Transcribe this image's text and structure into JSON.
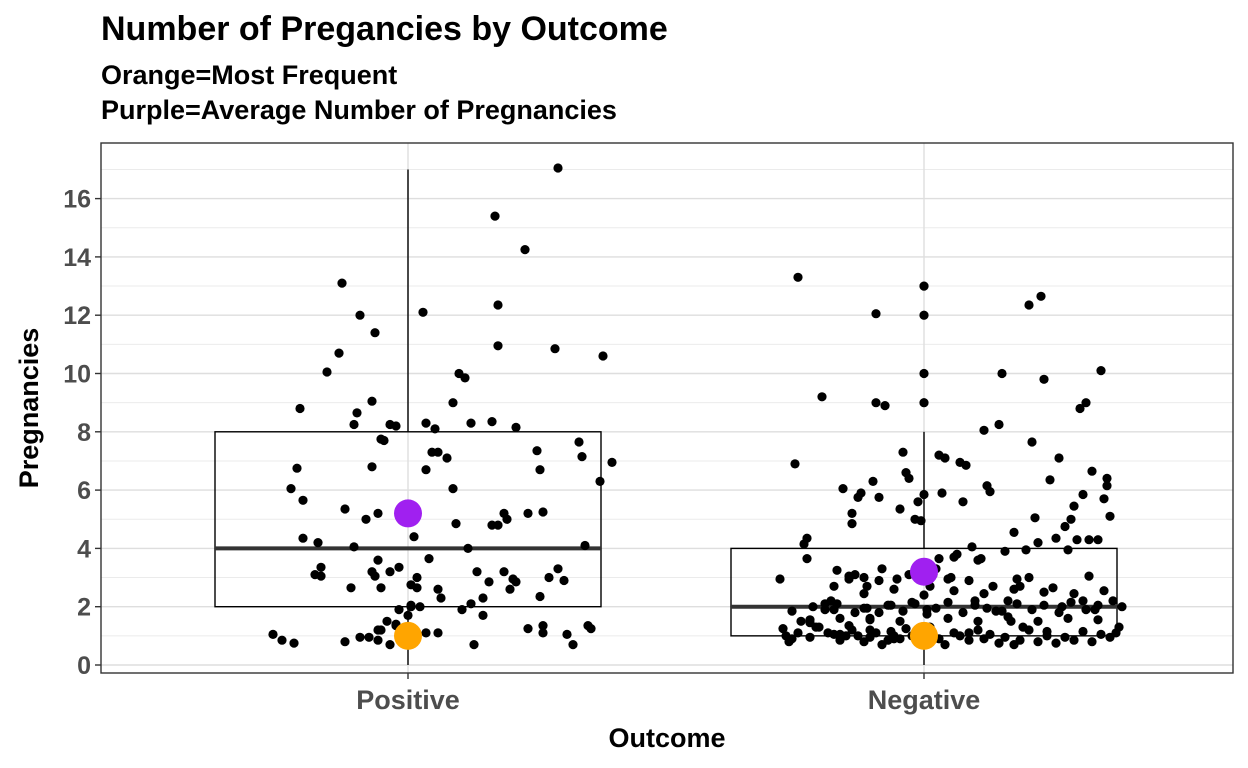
{
  "chart_data": {
    "type": "boxplot-jitter",
    "title": "Number of Pregancies by Outcome",
    "subtitle_lines": [
      "Orange=Most Frequent",
      "Purple=Average Number of Pregnancies"
    ],
    "xlabel": "Outcome",
    "ylabel": "Pregnancies",
    "categories": [
      "Positive",
      "Negative"
    ],
    "ylim": [
      -0.2,
      17.6
    ],
    "yticks": [
      0,
      2,
      4,
      6,
      8,
      10,
      12,
      14,
      16
    ],
    "grid": true,
    "boxes": [
      {
        "category": "Positive",
        "q1": 2,
        "median": 4,
        "q3": 8,
        "whisker_low": 0,
        "whisker_high": 17,
        "outliers": []
      },
      {
        "category": "Negative",
        "q1": 1,
        "median": 2,
        "q3": 4,
        "whisker_low": 0,
        "whisker_high": 8,
        "outliers": [
          9,
          10,
          12,
          13
        ]
      }
    ],
    "summary_points": [
      {
        "category": "Positive",
        "kind": "mode",
        "value": 1,
        "color": "#FFA500"
      },
      {
        "category": "Positive",
        "kind": "mean",
        "value": 5.2,
        "color": "#A020F0"
      },
      {
        "category": "Negative",
        "kind": "mode",
        "value": 1,
        "color": "#FFA500"
      },
      {
        "category": "Negative",
        "kind": "mean",
        "value": 3.2,
        "color": "#A020F0"
      }
    ],
    "jitter_points": {
      "Positive": [
        [
          -0.39,
          6.05
        ],
        [
          -0.36,
          8.8
        ],
        [
          -0.37,
          6.75
        ],
        [
          -0.35,
          4.35
        ],
        [
          -0.35,
          5.65
        ],
        [
          -0.31,
          3.1
        ],
        [
          -0.29,
          3.35
        ],
        [
          -0.29,
          3.05
        ],
        [
          -0.27,
          10.05
        ],
        [
          -0.23,
          10.7
        ],
        [
          -0.22,
          13.1
        ],
        [
          -0.21,
          5.35
        ],
        [
          -0.19,
          2.65
        ],
        [
          -0.18,
          4.05
        ],
        [
          -0.17,
          8.65
        ],
        [
          -0.16,
          12.0
        ],
        [
          -0.14,
          5.0
        ],
        [
          -0.12,
          6.8
        ],
        [
          -0.12,
          3.2
        ],
        [
          -0.11,
          3.05
        ],
        [
          -0.1,
          5.2
        ],
        [
          -0.09,
          2.65
        ],
        [
          -0.18,
          8.25
        ],
        [
          -0.06,
          3.2
        ],
        [
          -0.04,
          8.2
        ],
        [
          -0.04,
          1.35
        ],
        [
          -0.03,
          3.35
        ],
        [
          -0.03,
          1.9
        ],
        [
          0.0,
          1.7
        ],
        [
          0.01,
          2.0
        ],
        [
          0.01,
          2.75
        ],
        [
          0.03,
          3.0
        ],
        [
          0.03,
          2.65
        ],
        [
          0.01,
          2.05
        ],
        [
          0.02,
          4.4
        ],
        [
          -0.09,
          7.75
        ],
        [
          -0.08,
          7.7
        ],
        [
          -0.06,
          8.25
        ],
        [
          -0.07,
          1.5
        ],
        [
          -0.09,
          1.2
        ],
        [
          -0.1,
          1.2
        ],
        [
          -0.1,
          3.6
        ],
        [
          -0.11,
          11.4
        ],
        [
          -0.12,
          9.05
        ],
        [
          0.07,
          3.65
        ],
        [
          0.08,
          7.3
        ],
        [
          0.09,
          8.1
        ],
        [
          0.1,
          7.3
        ],
        [
          0.11,
          2.3
        ],
        [
          0.13,
          7.1
        ],
        [
          0.15,
          9.0
        ],
        [
          0.15,
          6.05
        ],
        [
          0.16,
          4.85
        ],
        [
          0.17,
          10.0
        ],
        [
          0.19,
          9.85
        ],
        [
          0.2,
          4.0
        ],
        [
          0.21,
          8.3
        ],
        [
          0.21,
          2.1
        ],
        [
          0.23,
          3.2
        ],
        [
          0.25,
          2.3
        ],
        [
          0.27,
          2.85
        ],
        [
          0.28,
          4.8
        ],
        [
          0.28,
          8.35
        ],
        [
          0.29,
          15.4
        ],
        [
          0.3,
          10.95
        ],
        [
          0.3,
          12.35
        ],
        [
          0.32,
          5.2
        ],
        [
          0.33,
          5.0
        ],
        [
          0.34,
          2.6
        ],
        [
          0.35,
          2.95
        ],
        [
          0.36,
          2.85
        ],
        [
          0.36,
          8.15
        ],
        [
          0.39,
          14.25
        ],
        [
          0.4,
          5.2
        ],
        [
          0.43,
          7.35
        ],
        [
          0.44,
          2.35
        ],
        [
          0.44,
          6.7
        ],
        [
          0.45,
          5.25
        ],
        [
          0.45,
          1.35
        ],
        [
          0.47,
          3.0
        ],
        [
          0.49,
          10.85
        ],
        [
          0.5,
          3.3
        ],
        [
          0.52,
          2.9
        ],
        [
          0.5,
          17.05
        ],
        [
          0.53,
          1.05
        ],
        [
          0.55,
          0.7
        ],
        [
          0.57,
          7.65
        ],
        [
          0.58,
          7.15
        ],
        [
          0.59,
          4.1
        ],
        [
          0.6,
          1.35
        ],
        [
          0.61,
          1.25
        ],
        [
          0.64,
          6.3
        ],
        [
          0.65,
          10.6
        ],
        [
          0.68,
          6.95
        ],
        [
          0.1,
          1.1
        ],
        [
          0.22,
          0.7
        ],
        [
          0.25,
          1.7
        ],
        [
          0.4,
          1.25
        ],
        [
          0.45,
          1.1
        ],
        [
          -0.45,
          1.05
        ],
        [
          -0.42,
          0.85
        ],
        [
          -0.38,
          0.75
        ],
        [
          -0.21,
          0.8
        ],
        [
          -0.16,
          0.95
        ],
        [
          -0.13,
          0.95
        ],
        [
          -0.1,
          0.85
        ],
        [
          -0.06,
          0.7
        ],
        [
          0.06,
          1.1
        ],
        [
          -0.04,
          1.4
        ],
        [
          0.05,
          12.1
        ],
        [
          0.1,
          2.6
        ],
        [
          0.06,
          6.7
        ],
        [
          0.06,
          8.3
        ],
        [
          0.0,
          1.25
        ],
        [
          0.3,
          4.8
        ],
        [
          0.32,
          3.2
        ],
        [
          0.18,
          1.9
        ],
        [
          -0.3,
          4.2
        ],
        [
          0.04,
          2.0
        ]
      ],
      "Negative": [
        [
          -0.48,
          2.95
        ],
        [
          -0.47,
          1.25
        ],
        [
          -0.46,
          1.0
        ],
        [
          -0.45,
          0.8
        ],
        [
          -0.44,
          1.85
        ],
        [
          -0.43,
          6.9
        ],
        [
          -0.42,
          13.3
        ],
        [
          -0.41,
          1.5
        ],
        [
          -0.4,
          4.15
        ],
        [
          -0.39,
          4.35
        ],
        [
          -0.39,
          3.65
        ],
        [
          -0.38,
          1.55
        ],
        [
          -0.37,
          2.0
        ],
        [
          -0.36,
          1.3
        ],
        [
          -0.34,
          9.2
        ],
        [
          -0.33,
          2.1
        ],
        [
          -0.32,
          1.1
        ],
        [
          -0.31,
          2.2
        ],
        [
          -0.3,
          1.9
        ],
        [
          -0.29,
          3.25
        ],
        [
          -0.28,
          1.05
        ],
        [
          -0.27,
          6.05
        ],
        [
          -0.25,
          2.95
        ],
        [
          -0.25,
          1.35
        ],
        [
          -0.24,
          4.85
        ],
        [
          -0.24,
          5.2
        ],
        [
          -0.23,
          3.1
        ],
        [
          -0.22,
          5.75
        ],
        [
          -0.21,
          5.9
        ],
        [
          -0.2,
          3.0
        ],
        [
          -0.2,
          1.95
        ],
        [
          -0.19,
          2.7
        ],
        [
          -0.18,
          1.6
        ],
        [
          -0.18,
          1.2
        ],
        [
          -0.17,
          6.3
        ],
        [
          -0.16,
          12.05
        ],
        [
          -0.16,
          9.0
        ],
        [
          -0.15,
          5.75
        ],
        [
          -0.14,
          3.3
        ],
        [
          -0.13,
          8.9
        ],
        [
          -0.12,
          2.05
        ],
        [
          -0.11,
          1.15
        ],
        [
          -0.1,
          0.9
        ],
        [
          -0.09,
          2.95
        ],
        [
          -0.08,
          5.35
        ],
        [
          -0.07,
          7.3
        ],
        [
          -0.06,
          6.6
        ],
        [
          -0.05,
          6.4
        ],
        [
          -0.04,
          2.15
        ],
        [
          -0.03,
          5.0
        ],
        [
          -0.02,
          5.6
        ],
        [
          -0.01,
          4.95
        ],
        [
          0.0,
          5.85
        ],
        [
          0.01,
          1.9
        ],
        [
          0.02,
          2.7
        ],
        [
          0.03,
          3.1
        ],
        [
          0.04,
          3.3
        ],
        [
          0.05,
          3.65
        ],
        [
          0.05,
          7.2
        ],
        [
          0.06,
          5.9
        ],
        [
          0.07,
          7.1
        ],
        [
          0.08,
          2.95
        ],
        [
          0.09,
          3.0
        ],
        [
          0.1,
          3.7
        ],
        [
          0.11,
          3.8
        ],
        [
          0.12,
          6.95
        ],
        [
          0.13,
          5.6
        ],
        [
          0.14,
          6.85
        ],
        [
          0.15,
          1.1
        ],
        [
          0.16,
          4.05
        ],
        [
          0.17,
          2.2
        ],
        [
          0.18,
          3.6
        ],
        [
          0.19,
          3.65
        ],
        [
          0.2,
          8.05
        ],
        [
          0.21,
          6.15
        ],
        [
          0.22,
          5.95
        ],
        [
          0.23,
          2.7
        ],
        [
          0.24,
          1.85
        ],
        [
          0.25,
          8.25
        ],
        [
          0.26,
          10.0
        ],
        [
          0.27,
          3.9
        ],
        [
          0.28,
          2.2
        ],
        [
          0.29,
          1.5
        ],
        [
          0.3,
          4.55
        ],
        [
          0.31,
          2.95
        ],
        [
          0.32,
          2.7
        ],
        [
          0.33,
          1.3
        ],
        [
          0.34,
          3.95
        ],
        [
          0.35,
          12.35
        ],
        [
          0.36,
          7.65
        ],
        [
          0.37,
          5.05
        ],
        [
          0.38,
          4.2
        ],
        [
          0.39,
          12.65
        ],
        [
          0.4,
          9.8
        ],
        [
          0.41,
          1.15
        ],
        [
          0.42,
          6.35
        ],
        [
          0.43,
          2.65
        ],
        [
          0.44,
          4.35
        ],
        [
          0.45,
          7.1
        ],
        [
          0.46,
          2.0
        ],
        [
          0.47,
          4.75
        ],
        [
          0.48,
          3.95
        ],
        [
          0.49,
          5.0
        ],
        [
          0.5,
          5.45
        ],
        [
          0.51,
          4.3
        ],
        [
          0.52,
          8.8
        ],
        [
          0.53,
          5.85
        ],
        [
          0.53,
          2.2
        ],
        [
          0.54,
          9.0
        ],
        [
          0.55,
          4.3
        ],
        [
          0.56,
          6.65
        ],
        [
          0.57,
          1.9
        ],
        [
          0.58,
          4.3
        ],
        [
          0.59,
          10.1
        ],
        [
          0.6,
          5.7
        ],
        [
          0.61,
          6.4
        ],
        [
          0.61,
          6.15
        ],
        [
          0.62,
          5.1
        ],
        [
          0.63,
          2.2
        ],
        [
          0.64,
          1.1
        ],
        [
          0.65,
          1.3
        ],
        [
          0.66,
          2.0
        ],
        [
          -0.44,
          0.9
        ],
        [
          -0.42,
          1.1
        ],
        [
          -0.38,
          0.95
        ],
        [
          -0.35,
          1.3
        ],
        [
          -0.3,
          1.05
        ],
        [
          -0.28,
          0.85
        ],
        [
          -0.26,
          1.0
        ],
        [
          -0.24,
          1.2
        ],
        [
          -0.22,
          1.0
        ],
        [
          -0.2,
          0.8
        ],
        [
          -0.18,
          0.95
        ],
        [
          -0.16,
          1.1
        ],
        [
          -0.14,
          0.7
        ],
        [
          -0.12,
          0.85
        ],
        [
          -0.1,
          1.0
        ],
        [
          -0.08,
          0.9
        ],
        [
          -0.06,
          1.25
        ],
        [
          -0.04,
          1.0
        ],
        [
          -0.02,
          0.85
        ],
        [
          0.02,
          1.3
        ],
        [
          0.05,
          0.9
        ],
        [
          0.07,
          0.7
        ],
        [
          0.1,
          1.1
        ],
        [
          0.12,
          1.0
        ],
        [
          0.15,
          0.85
        ],
        [
          0.18,
          1.2
        ],
        [
          0.2,
          0.9
        ],
        [
          0.22,
          1.05
        ],
        [
          0.25,
          0.75
        ],
        [
          0.27,
          0.95
        ],
        [
          0.3,
          0.7
        ],
        [
          0.32,
          0.85
        ],
        [
          0.35,
          1.2
        ],
        [
          0.38,
          0.8
        ],
        [
          0.41,
          1.0
        ],
        [
          0.44,
          0.75
        ],
        [
          0.47,
          0.95
        ],
        [
          0.5,
          0.85
        ],
        [
          0.53,
          1.15
        ],
        [
          0.56,
          0.8
        ],
        [
          0.59,
          1.05
        ],
        [
          0.62,
          0.95
        ],
        [
          -0.33,
          1.9
        ],
        [
          -0.29,
          2.1
        ],
        [
          -0.23,
          1.8
        ],
        [
          -0.19,
          1.95
        ],
        [
          -0.15,
          1.8
        ],
        [
          -0.11,
          2.05
        ],
        [
          -0.07,
          1.85
        ],
        [
          -0.03,
          2.1
        ],
        [
          0.01,
          1.75
        ],
        [
          0.04,
          1.95
        ],
        [
          0.08,
          2.15
        ],
        [
          0.13,
          1.8
        ],
        [
          0.17,
          2.05
        ],
        [
          0.21,
          1.95
        ],
        [
          0.26,
          1.85
        ],
        [
          0.31,
          2.1
        ],
        [
          0.36,
          1.9
        ],
        [
          0.4,
          2.05
        ],
        [
          0.45,
          1.8
        ],
        [
          0.49,
          2.15
        ],
        [
          0.54,
          1.9
        ],
        [
          0.58,
          2.05
        ],
        [
          -0.3,
          2.7
        ],
        [
          -0.2,
          2.45
        ],
        [
          -0.1,
          2.6
        ],
        [
          0.0,
          2.4
        ],
        [
          0.1,
          2.55
        ],
        [
          0.2,
          2.45
        ],
        [
          0.3,
          2.6
        ],
        [
          0.4,
          2.5
        ],
        [
          0.5,
          2.45
        ],
        [
          0.6,
          2.55
        ],
        [
          -0.25,
          3.05
        ],
        [
          -0.15,
          2.9
        ],
        [
          -0.05,
          3.1
        ],
        [
          0.15,
          2.9
        ],
        [
          0.35,
          3.0
        ],
        [
          0.55,
          3.05
        ],
        [
          0.0,
          9.0
        ],
        [
          0.0,
          10.0
        ],
        [
          0.0,
          12.0
        ],
        [
          0.0,
          13.0
        ],
        [
          -0.08,
          1.5
        ],
        [
          0.08,
          1.6
        ],
        [
          0.18,
          1.5
        ],
        [
          0.28,
          1.65
        ],
        [
          0.38,
          1.5
        ],
        [
          0.48,
          1.6
        ],
        [
          -0.18,
          1.55
        ],
        [
          -0.28,
          1.6
        ],
        [
          -0.38,
          1.45
        ],
        [
          0.58,
          1.55
        ]
      ]
    }
  }
}
